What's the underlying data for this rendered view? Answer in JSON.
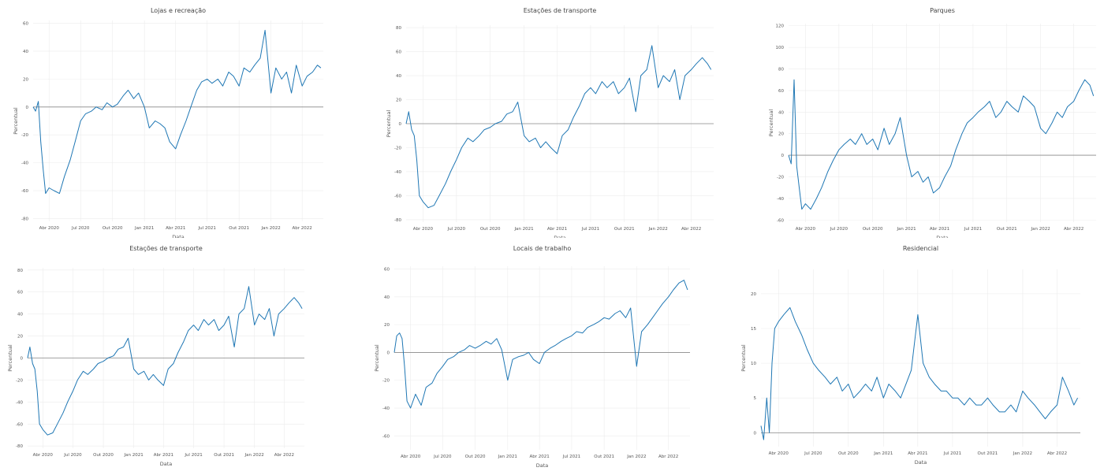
{
  "page": {
    "line_color": "#1f77b4",
    "zero_line_color": "#8a8a8a"
  },
  "chart_data": [
    {
      "type": "line",
      "title": "Lojas e recreação",
      "xlabel": "Data",
      "ylabel": "Percentual",
      "ylim": [
        -82,
        62
      ],
      "yticks": [
        -80,
        -60,
        -40,
        -20,
        0,
        20,
        40,
        60
      ],
      "xticks": [
        "Abr 2020",
        "Jul 2020",
        "Out 2020",
        "Jan 2021",
        "Abr 2021",
        "Jul 2021",
        "Out 2021",
        "Jan 2022",
        "Abr 2022"
      ],
      "grid": true,
      "series": [
        {
          "x": [
            "2020-02-15",
            "2020-02-22",
            "2020-03-01",
            "2020-03-08",
            "2020-03-15",
            "2020-03-22",
            "2020-04-01",
            "2020-04-15",
            "2020-05-01",
            "2020-05-15",
            "2020-06-01",
            "2020-06-15",
            "2020-07-01",
            "2020-07-15",
            "2020-08-01",
            "2020-08-15",
            "2020-09-01",
            "2020-09-15",
            "2020-10-01",
            "2020-10-15",
            "2020-11-01",
            "2020-11-15",
            "2020-12-01",
            "2020-12-15",
            "2021-01-01",
            "2021-01-15",
            "2021-02-01",
            "2021-02-15",
            "2021-03-01",
            "2021-03-15",
            "2021-04-01",
            "2021-04-15",
            "2021-05-01",
            "2021-05-15",
            "2021-06-01",
            "2021-06-15",
            "2021-07-01",
            "2021-07-15",
            "2021-08-01",
            "2021-08-15",
            "2021-09-01",
            "2021-09-15",
            "2021-10-01",
            "2021-10-15",
            "2021-11-01",
            "2021-11-15",
            "2021-12-01",
            "2021-12-15",
            "2022-01-01",
            "2022-01-15",
            "2022-02-01",
            "2022-02-15",
            "2022-03-01",
            "2022-03-15",
            "2022-04-01",
            "2022-04-15",
            "2022-05-01",
            "2022-05-15",
            "2022-05-25"
          ],
          "y": [
            0,
            -3,
            4,
            -25,
            -45,
            -62,
            -58,
            -60,
            -62,
            -50,
            -38,
            -25,
            -10,
            -5,
            -3,
            0,
            -2,
            3,
            0,
            2,
            8,
            12,
            6,
            10,
            0,
            -15,
            -10,
            -12,
            -15,
            -25,
            -30,
            -20,
            -10,
            0,
            12,
            18,
            20,
            17,
            20,
            15,
            25,
            22,
            15,
            28,
            25,
            30,
            35,
            55,
            10,
            28,
            20,
            25,
            10,
            30,
            15,
            22,
            25,
            30,
            28
          ]
        }
      ]
    },
    {
      "type": "line",
      "title": "Estações de transporte",
      "xlabel": "Data",
      "ylabel": "Percentual",
      "ylim": [
        -82,
        82
      ],
      "yticks": [
        -80,
        -60,
        -40,
        -20,
        0,
        20,
        40,
        60,
        80
      ],
      "xticks": [
        "Abr 2020",
        "Jul 2020",
        "Out 2020",
        "Jan 2021",
        "Abr 2021",
        "Jul 2021",
        "Out 2021",
        "Jan 2022",
        "Abr 2022"
      ],
      "grid": true,
      "series": [
        {
          "x": [
            "2020-02-15",
            "2020-02-22",
            "2020-03-01",
            "2020-03-08",
            "2020-03-15",
            "2020-03-22",
            "2020-04-01",
            "2020-04-15",
            "2020-05-01",
            "2020-05-15",
            "2020-06-01",
            "2020-06-15",
            "2020-07-01",
            "2020-07-15",
            "2020-08-01",
            "2020-08-15",
            "2020-09-01",
            "2020-09-15",
            "2020-10-01",
            "2020-10-15",
            "2020-11-01",
            "2020-11-15",
            "2020-12-01",
            "2020-12-15",
            "2021-01-01",
            "2021-01-15",
            "2021-02-01",
            "2021-02-15",
            "2021-03-01",
            "2021-03-15",
            "2021-04-01",
            "2021-04-15",
            "2021-05-01",
            "2021-05-15",
            "2021-06-01",
            "2021-06-15",
            "2021-07-01",
            "2021-07-15",
            "2021-08-01",
            "2021-08-15",
            "2021-09-01",
            "2021-09-15",
            "2021-10-01",
            "2021-10-15",
            "2021-11-01",
            "2021-11-15",
            "2021-12-01",
            "2021-12-15",
            "2022-01-01",
            "2022-01-15",
            "2022-02-01",
            "2022-02-15",
            "2022-03-01",
            "2022-03-15",
            "2022-04-01",
            "2022-04-15",
            "2022-05-01",
            "2022-05-15",
            "2022-05-25"
          ],
          "y": [
            0,
            10,
            -5,
            -10,
            -30,
            -60,
            -65,
            -70,
            -68,
            -60,
            -50,
            -40,
            -30,
            -20,
            -12,
            -15,
            -10,
            -5,
            -3,
            0,
            2,
            8,
            10,
            18,
            -10,
            -15,
            -12,
            -20,
            -15,
            -20,
            -25,
            -10,
            -5,
            5,
            15,
            25,
            30,
            25,
            35,
            30,
            35,
            25,
            30,
            38,
            10,
            40,
            45,
            65,
            30,
            40,
            35,
            45,
            20,
            40,
            45,
            50,
            55,
            50,
            45
          ]
        }
      ]
    },
    {
      "type": "line",
      "title": "Parques",
      "xlabel": "Data",
      "ylabel": "Percentual",
      "ylim": [
        -62,
        122
      ],
      "yticks": [
        -60,
        -40,
        -20,
        0,
        20,
        40,
        60,
        80,
        100,
        120
      ],
      "xticks": [
        "Abr 2020",
        "Jul 2020",
        "Out 2020",
        "Jan 2021",
        "Abr 2021",
        "Jul 2021",
        "Out 2021",
        "Jan 2022",
        "Abr 2022"
      ],
      "grid": true,
      "series": [
        {
          "x": [
            "2020-02-15",
            "2020-02-22",
            "2020-03-01",
            "2020-03-08",
            "2020-03-15",
            "2020-03-22",
            "2020-04-01",
            "2020-04-15",
            "2020-05-01",
            "2020-05-15",
            "2020-06-01",
            "2020-06-15",
            "2020-07-01",
            "2020-07-15",
            "2020-08-01",
            "2020-08-15",
            "2020-09-01",
            "2020-09-15",
            "2020-10-01",
            "2020-10-15",
            "2020-11-01",
            "2020-11-15",
            "2020-12-01",
            "2020-12-15",
            "2021-01-01",
            "2021-01-15",
            "2021-02-01",
            "2021-02-15",
            "2021-03-01",
            "2021-03-15",
            "2021-04-01",
            "2021-04-15",
            "2021-05-01",
            "2021-05-15",
            "2021-06-01",
            "2021-06-15",
            "2021-07-01",
            "2021-07-15",
            "2021-08-01",
            "2021-08-15",
            "2021-09-01",
            "2021-09-15",
            "2021-10-01",
            "2021-10-15",
            "2021-11-01",
            "2021-11-15",
            "2021-12-01",
            "2021-12-15",
            "2022-01-01",
            "2022-01-15",
            "2022-02-01",
            "2022-02-15",
            "2022-03-01",
            "2022-03-15",
            "2022-04-01",
            "2022-04-15",
            "2022-05-01",
            "2022-05-15",
            "2022-05-25"
          ],
          "y": [
            0,
            -8,
            70,
            -10,
            -30,
            -50,
            -45,
            -50,
            -40,
            -30,
            -15,
            -5,
            5,
            10,
            15,
            10,
            20,
            10,
            15,
            5,
            25,
            10,
            20,
            35,
            0,
            -20,
            -15,
            -25,
            -20,
            -35,
            -30,
            -20,
            -10,
            5,
            20,
            30,
            35,
            40,
            45,
            50,
            35,
            40,
            50,
            45,
            40,
            55,
            50,
            45,
            25,
            20,
            30,
            40,
            35,
            45,
            50,
            60,
            70,
            65,
            55
          ]
        }
      ]
    },
    {
      "type": "line",
      "title": "Estações de transporte",
      "xlabel": "Data",
      "ylabel": "Percentual",
      "ylim": [
        -82,
        82
      ],
      "yticks": [
        -80,
        -60,
        -40,
        -20,
        0,
        20,
        40,
        60,
        80
      ],
      "xticks": [
        "Abr 2020",
        "Jul 2020",
        "Out 2020",
        "Jan 2021",
        "Abr 2021",
        "Jul 2021",
        "Out 2021",
        "Jan 2022",
        "Abr 2022"
      ],
      "grid": true,
      "series": [
        {
          "x": [
            "2020-02-15",
            "2020-02-22",
            "2020-03-01",
            "2020-03-08",
            "2020-03-15",
            "2020-03-22",
            "2020-04-01",
            "2020-04-15",
            "2020-05-01",
            "2020-05-15",
            "2020-06-01",
            "2020-06-15",
            "2020-07-01",
            "2020-07-15",
            "2020-08-01",
            "2020-08-15",
            "2020-09-01",
            "2020-09-15",
            "2020-10-01",
            "2020-10-15",
            "2020-11-01",
            "2020-11-15",
            "2020-12-01",
            "2020-12-15",
            "2021-01-01",
            "2021-01-15",
            "2021-02-01",
            "2021-02-15",
            "2021-03-01",
            "2021-03-15",
            "2021-04-01",
            "2021-04-15",
            "2021-05-01",
            "2021-05-15",
            "2021-06-01",
            "2021-06-15",
            "2021-07-01",
            "2021-07-15",
            "2021-08-01",
            "2021-08-15",
            "2021-09-01",
            "2021-09-15",
            "2021-10-01",
            "2021-10-15",
            "2021-11-01",
            "2021-11-15",
            "2021-12-01",
            "2021-12-15",
            "2022-01-01",
            "2022-01-15",
            "2022-02-01",
            "2022-02-15",
            "2022-03-01",
            "2022-03-15",
            "2022-04-01",
            "2022-04-15",
            "2022-05-01",
            "2022-05-15",
            "2022-05-25"
          ],
          "y": [
            0,
            10,
            -5,
            -10,
            -30,
            -60,
            -65,
            -70,
            -68,
            -60,
            -50,
            -40,
            -30,
            -20,
            -12,
            -15,
            -10,
            -5,
            -3,
            0,
            2,
            8,
            10,
            18,
            -10,
            -15,
            -12,
            -20,
            -15,
            -20,
            -25,
            -10,
            -5,
            5,
            15,
            25,
            30,
            25,
            35,
            30,
            35,
            25,
            30,
            38,
            10,
            40,
            45,
            65,
            30,
            40,
            35,
            45,
            20,
            40,
            45,
            50,
            55,
            50,
            45
          ]
        }
      ]
    },
    {
      "type": "line",
      "title": "Locais de trabalho",
      "xlabel": "Data",
      "ylabel": "Percentual",
      "ylim": [
        -70,
        62
      ],
      "yticks": [
        -60,
        -40,
        -20,
        0,
        20,
        40,
        60
      ],
      "xticks": [
        "Abr 2020",
        "Jul 2020",
        "Out 2020",
        "Jan 2021",
        "Abr 2021",
        "Jul 2021",
        "Out 2021",
        "Jan 2022",
        "Abr 2022"
      ],
      "grid": true,
      "series": [
        {
          "x": [
            "2020-02-15",
            "2020-02-22",
            "2020-03-01",
            "2020-03-08",
            "2020-03-15",
            "2020-03-22",
            "2020-04-01",
            "2020-04-15",
            "2020-05-01",
            "2020-05-15",
            "2020-06-01",
            "2020-06-15",
            "2020-07-01",
            "2020-07-15",
            "2020-08-01",
            "2020-08-15",
            "2020-09-01",
            "2020-09-15",
            "2020-10-01",
            "2020-10-15",
            "2020-11-01",
            "2020-11-15",
            "2020-12-01",
            "2020-12-15",
            "2021-01-01",
            "2021-01-15",
            "2021-02-01",
            "2021-02-15",
            "2021-03-01",
            "2021-03-15",
            "2021-04-01",
            "2021-04-15",
            "2021-05-01",
            "2021-05-15",
            "2021-06-01",
            "2021-06-15",
            "2021-07-01",
            "2021-07-15",
            "2021-08-01",
            "2021-08-15",
            "2021-09-01",
            "2021-09-15",
            "2021-10-01",
            "2021-10-15",
            "2021-11-01",
            "2021-11-15",
            "2021-12-01",
            "2021-12-15",
            "2022-01-01",
            "2022-01-15",
            "2022-02-01",
            "2022-02-15",
            "2022-03-01",
            "2022-03-15",
            "2022-04-01",
            "2022-04-15",
            "2022-05-01",
            "2022-05-15",
            "2022-05-25"
          ],
          "y": [
            0,
            12,
            14,
            10,
            -10,
            -35,
            -40,
            -30,
            -38,
            -25,
            -22,
            -15,
            -10,
            -5,
            -3,
            0,
            2,
            5,
            3,
            5,
            8,
            6,
            10,
            2,
            -20,
            -5,
            -3,
            -2,
            0,
            -5,
            -8,
            0,
            3,
            5,
            8,
            10,
            12,
            15,
            14,
            18,
            20,
            22,
            25,
            24,
            28,
            30,
            25,
            32,
            -10,
            15,
            20,
            25,
            30,
            35,
            40,
            45,
            50,
            52,
            45
          ]
        }
      ]
    },
    {
      "type": "line",
      "title": "Residencial",
      "xlabel": "Data",
      "ylabel": "Percentual",
      "ylim": [
        -2,
        23.5
      ],
      "yticks": [
        0,
        5,
        10,
        15,
        20
      ],
      "xticks": [
        "Abr 2020",
        "Jul 2020",
        "Out 2020",
        "Jan 2021",
        "Abr 2021",
        "Jul 2021",
        "Out 2021",
        "Jan 2022",
        "Abr 2022"
      ],
      "grid": true,
      "series": [
        {
          "x": [
            "2020-02-15",
            "2020-02-22",
            "2020-03-01",
            "2020-03-08",
            "2020-03-15",
            "2020-03-22",
            "2020-04-01",
            "2020-04-15",
            "2020-05-01",
            "2020-05-15",
            "2020-06-01",
            "2020-06-15",
            "2020-07-01",
            "2020-07-15",
            "2020-08-01",
            "2020-08-15",
            "2020-09-01",
            "2020-09-15",
            "2020-10-01",
            "2020-10-15",
            "2020-11-01",
            "2020-11-15",
            "2020-12-01",
            "2020-12-15",
            "2021-01-01",
            "2021-01-15",
            "2021-02-01",
            "2021-02-15",
            "2021-03-01",
            "2021-03-15",
            "2021-04-01",
            "2021-04-15",
            "2021-05-01",
            "2021-05-15",
            "2021-06-01",
            "2021-06-15",
            "2021-07-01",
            "2021-07-15",
            "2021-08-01",
            "2021-08-15",
            "2021-09-01",
            "2021-09-15",
            "2021-10-01",
            "2021-10-15",
            "2021-11-01",
            "2021-11-15",
            "2021-12-01",
            "2021-12-15",
            "2022-01-01",
            "2022-01-15",
            "2022-02-01",
            "2022-02-15",
            "2022-03-01",
            "2022-03-15",
            "2022-04-01",
            "2022-04-15",
            "2022-05-01",
            "2022-05-15",
            "2022-05-25"
          ],
          "y": [
            1,
            -1,
            5,
            0,
            10,
            15,
            16,
            17,
            18,
            16,
            14,
            12,
            10,
            9,
            8,
            7,
            8,
            6,
            7,
            5,
            6,
            7,
            6,
            8,
            5,
            7,
            6,
            5,
            7,
            9,
            17,
            10,
            8,
            7,
            6,
            6,
            5,
            5,
            4,
            5,
            4,
            4,
            5,
            4,
            3,
            3,
            4,
            3,
            6,
            5,
            4,
            3,
            2,
            3,
            4,
            8,
            6,
            4,
            5
          ]
        }
      ]
    }
  ]
}
